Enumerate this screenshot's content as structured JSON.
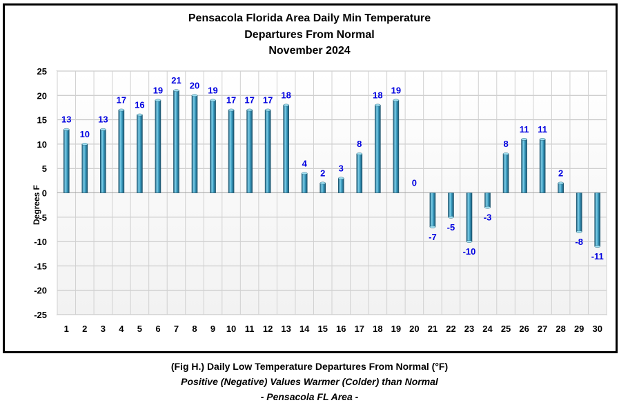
{
  "chart_data": {
    "type": "bar",
    "title": [
      "Pensacola Florida Area Daily Min Temperature",
      "Departures From Normal",
      "November 2024"
    ],
    "ylabel": "Degrees F",
    "xlabel": "",
    "ylim": [
      -25,
      25
    ],
    "yticks": [
      25,
      20,
      15,
      10,
      5,
      0,
      -5,
      -10,
      -15,
      -20,
      -25
    ],
    "categories": [
      "1",
      "2",
      "3",
      "4",
      "5",
      "6",
      "7",
      "8",
      "9",
      "10",
      "11",
      "12",
      "13",
      "14",
      "15",
      "16",
      "17",
      "18",
      "19",
      "20",
      "21",
      "22",
      "23",
      "24",
      "25",
      "26",
      "27",
      "28",
      "29",
      "30"
    ],
    "values": [
      13,
      10,
      13,
      17,
      16,
      19,
      21,
      20,
      19,
      17,
      17,
      17,
      18,
      4,
      2,
      3,
      8,
      18,
      19,
      0,
      -7,
      -5,
      -10,
      -3,
      8,
      11,
      11,
      2,
      -8,
      -11
    ],
    "grid": true,
    "legend": "none",
    "bar_color": "#3a9cc0",
    "label_color": "#0000e0"
  },
  "caption": {
    "line1": "(Fig H.) Daily Low Temperature Departures From Normal (°F)",
    "line2": "Positive (Negative) Values Warmer (Colder) than Normal",
    "line3": "- Pensacola FL Area -"
  }
}
